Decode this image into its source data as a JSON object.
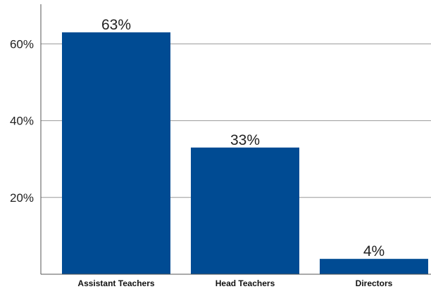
{
  "chart_data": {
    "type": "bar",
    "title": "",
    "xlabel": "",
    "ylabel": "",
    "categories": [
      "Assistant Teachers",
      "Head Teachers",
      "Directors"
    ],
    "values": [
      63,
      33,
      4
    ],
    "data_labels": [
      "63%",
      "33%",
      "4%"
    ],
    "ylim": [
      0,
      70
    ],
    "yticks": [
      20,
      40,
      60
    ],
    "ytick_labels": [
      "20%",
      "40%",
      "60%"
    ],
    "grid": true,
    "legend": "none",
    "bar_color": "#004b93"
  }
}
